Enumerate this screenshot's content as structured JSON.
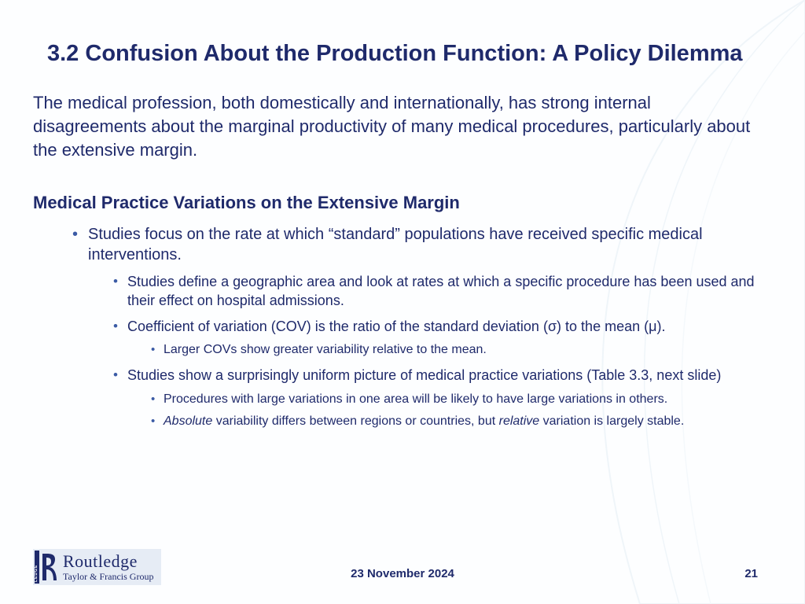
{
  "colors": {
    "text": "#1f2a6b",
    "bullet": "#3b5ba5",
    "bg": "#fdfeff",
    "curve": "#dce8f2",
    "logoBg": "#e6ecf5"
  },
  "typography": {
    "title_pt": 29,
    "intro_pt": 22,
    "sub_pt": 22,
    "l1_pt": 20,
    "l2_pt": 18,
    "l3_pt": 16,
    "footer_pt": 15
  },
  "title": "3.2  Confusion About the Production Function: A Policy Dilemma",
  "intro": "The medical profession, both domestically and internationally, has strong internal disagreements about the marginal productivity of many medical procedures, particularly about the extensive margin.",
  "subheading": "Medical Practice Variations on the Extensive Margin",
  "bullets": {
    "l1_0": "Studies focus on the rate at which “standard” populations have received specific medical interventions.",
    "l2_0": "Studies define a geographic area and look at rates at which a specific procedure has been used and their effect on hospital admissions.",
    "l2_1": "Coefficient of variation (COV) is the ratio of the standard deviation (σ) to the mean (μ).",
    "l3_0": "Larger COVs show greater variability relative to the mean.",
    "l2_2": "Studies show a surprisingly uniform picture of medical practice variations (Table 3.3, next slide)",
    "l3_1": "Procedures with large variations in one area will be likely to have large variations in others.",
    "l3_2a": "Absolute",
    "l3_2b": " variability differs between regions or countries, but ",
    "l3_2c": "relative",
    "l3_2d": " variation is largely stable."
  },
  "footer": {
    "date": "23 November 2024",
    "page": "21",
    "logo_main": "Routledge",
    "logo_sub": "Taylor & Francis Group",
    "logo_side": "ROUTLEDGE"
  }
}
